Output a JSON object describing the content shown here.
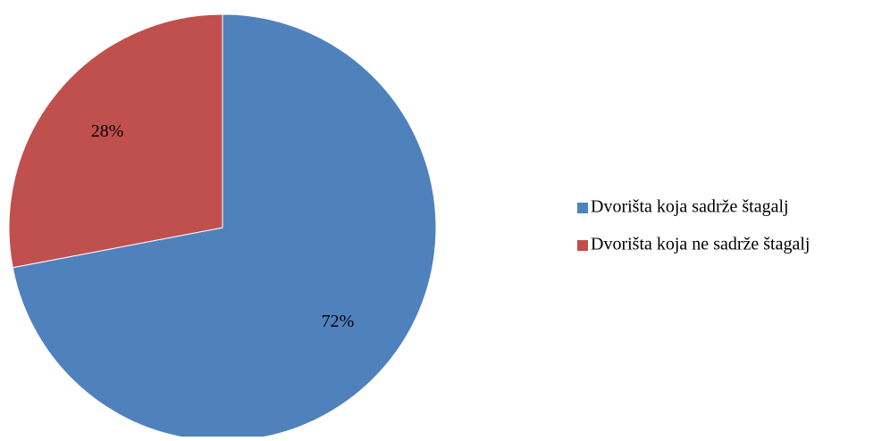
{
  "chart_data": {
    "type": "pie",
    "title": "",
    "slices": [
      {
        "label": "Dvorišta koja sadrže štagalj",
        "value": 72,
        "data_label": "72%",
        "color": "#4F81BD"
      },
      {
        "label": "Dvorišta koja ne sadrže štagalj",
        "value": 28,
        "data_label": "28%",
        "color": "#C0504D"
      }
    ],
    "legend_position": "right"
  }
}
